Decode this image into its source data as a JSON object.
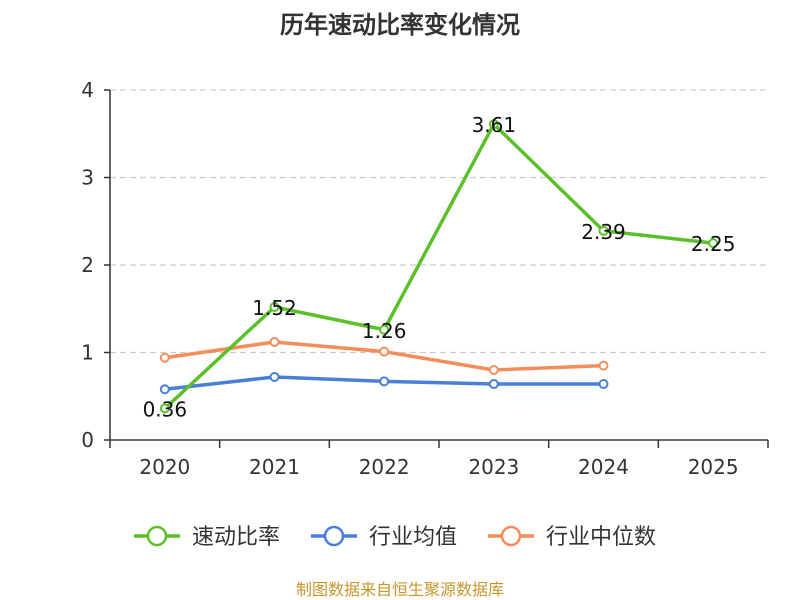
{
  "chart_data": {
    "type": "line",
    "title": "历年速动比率变化情况",
    "categories": [
      "2020",
      "2021",
      "2022",
      "2023",
      "2024",
      "2025"
    ],
    "ylim": [
      0,
      4
    ],
    "yticks": [
      0,
      1,
      2,
      3,
      4
    ],
    "grid": true,
    "series": [
      {
        "name": "速动比率",
        "color": "#5cc02a",
        "values": [
          0.36,
          1.52,
          1.26,
          3.61,
          2.39,
          2.25
        ],
        "labels": [
          "0.36",
          "1.52",
          "1.26",
          "3.61",
          "2.39",
          "2.25"
        ]
      },
      {
        "name": "行业均值",
        "color": "#4a7fd6",
        "values": [
          0.58,
          0.72,
          0.67,
          0.64,
          0.64,
          null
        ]
      },
      {
        "name": "行业中位数",
        "color": "#f28e5c",
        "values": [
          0.94,
          1.12,
          1.01,
          0.8,
          0.85,
          null
        ]
      }
    ],
    "legend_position": "bottom",
    "source": "制图数据来自恒生聚源数据库"
  }
}
